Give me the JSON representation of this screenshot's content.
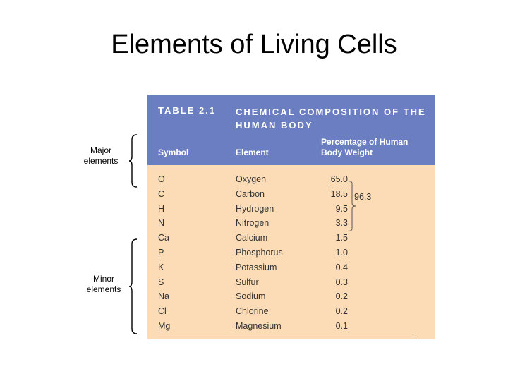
{
  "slide": {
    "title": "Elements of Living Cells",
    "major_label": "Major elements",
    "minor_label": "Minor elements"
  },
  "table": {
    "number": "TABLE 2.1",
    "caption": "CHEMICAL COMPOSITION OF THE HUMAN BODY",
    "columns": {
      "symbol": "Symbol",
      "element": "Element",
      "percent": "Percentage of Human Body Weight"
    },
    "rows": [
      {
        "symbol": "O",
        "element": "Oxygen",
        "percent": "65.0"
      },
      {
        "symbol": "C",
        "element": "Carbon",
        "percent": "18.5"
      },
      {
        "symbol": "H",
        "element": "Hydrogen",
        "percent": "9.5"
      },
      {
        "symbol": "N",
        "element": "Nitrogen",
        "percent": "3.3"
      },
      {
        "symbol": "Ca",
        "element": "Calcium",
        "percent": "1.5"
      },
      {
        "symbol": "P",
        "element": "Phosphorus",
        "percent": "1.0"
      },
      {
        "symbol": "K",
        "element": "Potassium",
        "percent": "0.4"
      },
      {
        "symbol": "S",
        "element": "Sulfur",
        "percent": "0.3"
      },
      {
        "symbol": "Na",
        "element": "Sodium",
        "percent": "0.2"
      },
      {
        "symbol": "Cl",
        "element": "Chlorine",
        "percent": "0.2"
      },
      {
        "symbol": "Mg",
        "element": "Magnesium",
        "percent": "0.1"
      }
    ],
    "subtotal": "96.3"
  },
  "colors": {
    "header": "#6a7ec1",
    "body": "#fbdcb6"
  }
}
